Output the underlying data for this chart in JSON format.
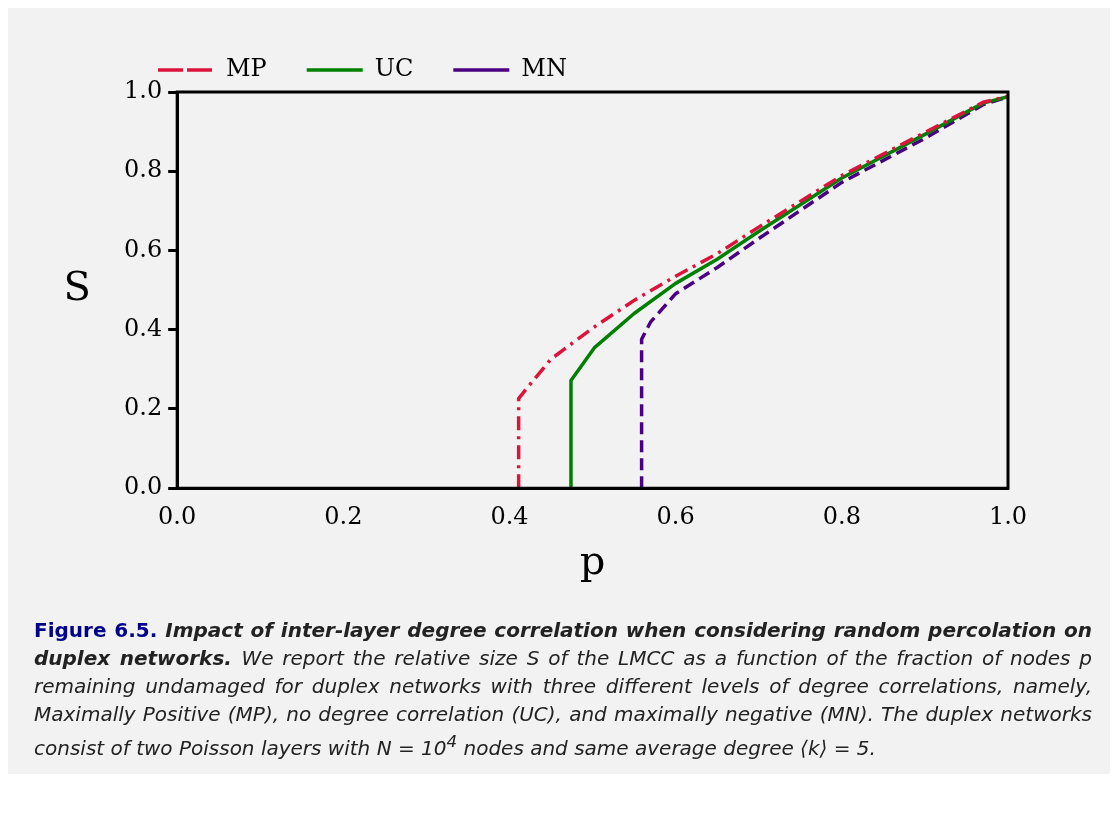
{
  "chart_data": {
    "type": "line",
    "xlabel": "p",
    "ylabel": "S",
    "xlim": [
      0,
      1
    ],
    "ylim": [
      0,
      1
    ],
    "xticks": [
      {
        "value": 0,
        "label": "0.0"
      },
      {
        "value": 0.2,
        "label": "0.2"
      },
      {
        "value": 0.4,
        "label": "0.4"
      },
      {
        "value": 0.6,
        "label": "0.6"
      },
      {
        "value": 0.8,
        "label": "0.8"
      },
      {
        "value": 1,
        "label": "1.0"
      }
    ],
    "yticks": [
      {
        "value": 0,
        "label": "0.0"
      },
      {
        "value": 0.2,
        "label": "0.2"
      },
      {
        "value": 0.4,
        "label": "0.4"
      },
      {
        "value": 0.6,
        "label": "0.6"
      },
      {
        "value": 0.8,
        "label": "0.8"
      },
      {
        "value": 1,
        "label": "1.0"
      }
    ],
    "grid": false,
    "legend": "top left",
    "marker": "none",
    "series": [
      {
        "name": "MP",
        "color": "#dc143c",
        "line_style": "dashdot",
        "x": [
          0.411,
          0.411,
          0.42,
          0.45,
          0.5,
          0.55,
          0.6,
          0.65,
          0.7,
          0.8,
          0.9,
          0.97,
          1.0
        ],
        "values": [
          0,
          0.226,
          0.25,
          0.326,
          0.404,
          0.474,
          0.535,
          0.592,
          0.659,
          0.789,
          0.898,
          0.974,
          0.989
        ]
      },
      {
        "name": "UC",
        "color": "#008000",
        "line_style": "solid",
        "x": [
          0.474,
          0.474,
          0.502,
          0.55,
          0.6,
          0.65,
          0.7,
          0.8,
          0.9,
          0.97,
          1.0
        ],
        "values": [
          0,
          0.272,
          0.354,
          0.441,
          0.517,
          0.578,
          0.648,
          0.783,
          0.893,
          0.972,
          0.988
        ]
      },
      {
        "name": "MN",
        "color": "#4b0082",
        "line_style": "dashed",
        "x": [
          0.559,
          0.559,
          0.57,
          0.6,
          0.65,
          0.7,
          0.8,
          0.9,
          0.97,
          1.0
        ],
        "values": [
          0,
          0.376,
          0.42,
          0.491,
          0.557,
          0.63,
          0.772,
          0.883,
          0.968,
          0.988
        ]
      }
    ],
    "annotations": [
      "Figure 6.5.",
      "Impact of inter-layer degree correlation when considering random percolation on duplex networks.",
      "We report the relative size S of the LMCC as a function of the fraction of nodes p remaining undamaged for duplex networks with three different levels of degree correlations, namely, Maximally Positive (MP), no degree correlation (UC), and maximally negative (MN). The duplex networks consist of two Poisson layers with N = 10$^{4}$ nodes and same average degree ⟨k⟩ = 5."
    ]
  }
}
